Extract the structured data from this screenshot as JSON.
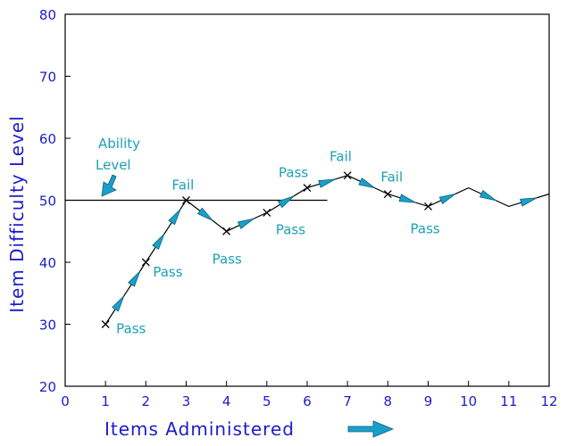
{
  "colors": {
    "axis_text": "#1c1ccc",
    "annotation": "#1aa0b8",
    "arrow_fill": "#1aa0c8",
    "line": "#000000"
  },
  "chart_data": {
    "type": "line",
    "xlabel": "Items Administered",
    "ylabel": "Item Difficulty Level",
    "xlim": [
      0,
      12
    ],
    "ylim": [
      20,
      80
    ],
    "xticks": [
      "0",
      "1",
      "2",
      "3",
      "4",
      "5",
      "6",
      "7",
      "8",
      "9",
      "10",
      "11",
      "12"
    ],
    "yticks": [
      "20",
      "30",
      "40",
      "50",
      "60",
      "70",
      "80"
    ],
    "grid": false,
    "ability_level": {
      "label_line1": "Ability",
      "label_line2": "Level",
      "value": 50,
      "x_end": 6.5
    },
    "points": [
      {
        "x": 1,
        "y": 30,
        "label": "Pass"
      },
      {
        "x": 2,
        "y": 40,
        "label": "Pass"
      },
      {
        "x": 3,
        "y": 50,
        "label": "Fail"
      },
      {
        "x": 4,
        "y": 45,
        "label": "Pass"
      },
      {
        "x": 5,
        "y": 48,
        "label": "Pass"
      },
      {
        "x": 6,
        "y": 52,
        "label": "Pass"
      },
      {
        "x": 7,
        "y": 54,
        "label": "Fail"
      },
      {
        "x": 8,
        "y": 51,
        "label": "Fail"
      },
      {
        "x": 9,
        "y": 49,
        "label": "Pass"
      },
      {
        "x": 10,
        "y": 52,
        "label": ""
      },
      {
        "x": 11,
        "y": 49,
        "label": ""
      },
      {
        "x": 12,
        "y": 51,
        "label": ""
      }
    ]
  }
}
